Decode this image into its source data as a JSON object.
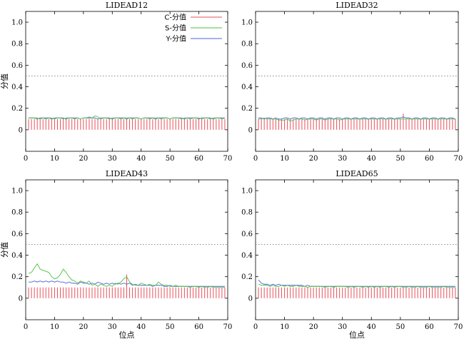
{
  "chart_data": [
    {
      "type": "line",
      "title": "LIDEAD12",
      "xlabel": "",
      "ylabel": "分值",
      "xlim": [
        0,
        70
      ],
      "ylim": [
        -0.2,
        1.1
      ],
      "xticks": [
        "0",
        "10",
        "20",
        "30",
        "40",
        "50",
        "60",
        "70"
      ],
      "yticks": [
        "0",
        "0.2",
        "0.4",
        "0.6",
        "0.8",
        "1.0"
      ],
      "reference_line": 0.5,
      "legend_position": "top-right",
      "legend": [
        {
          "name": "C-分值",
          "color": "#e8505a"
        },
        {
          "name": "S-分值",
          "color": "#4fc23c"
        },
        {
          "name": "Y-分值",
          "color": "#4b63d8"
        }
      ],
      "c_values": [
        0.1,
        0.1,
        0.1,
        0.1,
        0.1,
        0.1,
        0.1,
        0.1,
        0.1,
        0.1,
        0.1,
        0.1,
        0.1,
        0.1,
        0.1,
        0.1,
        0.1,
        0.1,
        0.1,
        0.1,
        0.1,
        0.1,
        0.1,
        0.1,
        0.1,
        0.1,
        0.1,
        0.1,
        0.1,
        0.1,
        0.1,
        0.1,
        0.1,
        0.1,
        0.1,
        0.1,
        0.1,
        0.1,
        0.1,
        0.1,
        0.1,
        0.1,
        0.1,
        0.1,
        0.1,
        0.1,
        0.1,
        0.1,
        0.1,
        0.1,
        0.1,
        0.1,
        0.1,
        0.1,
        0.1,
        0.1,
        0.1,
        0.1,
        0.1,
        0.1,
        0.1,
        0.1,
        0.1,
        0.1,
        0.1,
        0.1,
        0.1,
        0.1,
        0.1
      ],
      "s_values": [
        0.11,
        0.11,
        0.11,
        0.11,
        0.1,
        0.11,
        0.1,
        0.11,
        0.11,
        0.1,
        0.11,
        0.11,
        0.1,
        0.11,
        0.11,
        0.11,
        0.1,
        0.11,
        0.1,
        0.11,
        0.11,
        0.12,
        0.11,
        0.13,
        0.12,
        0.1,
        0.11,
        0.11,
        0.1,
        0.11,
        0.11,
        0.11,
        0.1,
        0.11,
        0.11,
        0.11,
        0.1,
        0.11,
        0.11,
        0.1,
        0.11,
        0.11,
        0.1,
        0.11,
        0.11,
        0.11,
        0.1,
        0.11,
        0.11,
        0.1,
        0.11,
        0.11,
        0.11,
        0.1,
        0.11,
        0.11,
        0.1,
        0.11,
        0.11,
        0.11,
        0.1,
        0.11,
        0.11,
        0.1,
        0.11,
        0.11,
        0.11,
        0.1,
        0.11
      ],
      "y_values": [
        0.11,
        0.11,
        0.11,
        0.1,
        0.11,
        0.11,
        0.11,
        0.11,
        0.1,
        0.11,
        0.11,
        0.11,
        0.11,
        0.1,
        0.11,
        0.11,
        0.11,
        0.11,
        0.1,
        0.11,
        0.11,
        0.11,
        0.11,
        0.11,
        0.1,
        0.11,
        0.11,
        0.11,
        0.11,
        0.1,
        0.11,
        0.11,
        0.11,
        0.11,
        0.1,
        0.11,
        0.11,
        0.11,
        0.11,
        0.1,
        0.11,
        0.11,
        0.11,
        0.11,
        0.1,
        0.11,
        0.11,
        0.11,
        0.11,
        0.1,
        0.11,
        0.11,
        0.11,
        0.11,
        0.1,
        0.11,
        0.11,
        0.11,
        0.11,
        0.1,
        0.11,
        0.11,
        0.11,
        0.11,
        0.1,
        0.11,
        0.11,
        0.11,
        0.11
      ]
    },
    {
      "type": "line",
      "title": "LIDEAD32",
      "xlabel": "",
      "ylabel": "",
      "xlim": [
        0,
        70
      ],
      "ylim": [
        -0.2,
        1.1
      ],
      "xticks": [
        "0",
        "10",
        "20",
        "30",
        "40",
        "50",
        "60",
        "70"
      ],
      "yticks": [
        "0",
        "0.2",
        "0.4",
        "0.6",
        "0.8",
        "1.0"
      ],
      "reference_line": 0.5,
      "c_values": [
        0.1,
        0.1,
        0.1,
        0.1,
        0.1,
        0.1,
        0.1,
        0.1,
        0.1,
        0.1,
        0.1,
        0.1,
        0.1,
        0.1,
        0.1,
        0.1,
        0.1,
        0.1,
        0.1,
        0.1,
        0.1,
        0.1,
        0.1,
        0.1,
        0.1,
        0.1,
        0.1,
        0.1,
        0.1,
        0.1,
        0.1,
        0.1,
        0.1,
        0.1,
        0.1,
        0.1,
        0.1,
        0.1,
        0.1,
        0.1,
        0.1,
        0.1,
        0.1,
        0.1,
        0.1,
        0.1,
        0.1,
        0.1,
        0.1,
        0.1,
        0.15,
        0.1,
        0.1,
        0.1,
        0.1,
        0.1,
        0.1,
        0.1,
        0.1,
        0.1,
        0.1,
        0.1,
        0.1,
        0.1,
        0.1,
        0.1,
        0.1,
        0.1,
        0.1
      ],
      "s_values": [
        0.1,
        0.1,
        0.11,
        0.1,
        0.1,
        0.1,
        0.1,
        0.09,
        0.09,
        0.09,
        0.1,
        0.08,
        0.09,
        0.1,
        0.1,
        0.1,
        0.09,
        0.1,
        0.1,
        0.1,
        0.09,
        0.1,
        0.1,
        0.09,
        0.1,
        0.1,
        0.1,
        0.1,
        0.09,
        0.1,
        0.1,
        0.1,
        0.1,
        0.1,
        0.1,
        0.1,
        0.1,
        0.1,
        0.1,
        0.1,
        0.1,
        0.1,
        0.1,
        0.1,
        0.1,
        0.1,
        0.1,
        0.1,
        0.1,
        0.1,
        0.1,
        0.1,
        0.1,
        0.1,
        0.1,
        0.1,
        0.1,
        0.1,
        0.1,
        0.1,
        0.1,
        0.1,
        0.1,
        0.1,
        0.1,
        0.1,
        0.1,
        0.1,
        0.1
      ],
      "y_values": [
        0.11,
        0.11,
        0.1,
        0.11,
        0.11,
        0.1,
        0.11,
        0.1,
        0.1,
        0.11,
        0.11,
        0.1,
        0.11,
        0.11,
        0.1,
        0.11,
        0.11,
        0.1,
        0.11,
        0.11,
        0.1,
        0.11,
        0.11,
        0.1,
        0.11,
        0.11,
        0.1,
        0.11,
        0.11,
        0.1,
        0.11,
        0.11,
        0.1,
        0.11,
        0.11,
        0.1,
        0.11,
        0.11,
        0.1,
        0.11,
        0.11,
        0.1,
        0.11,
        0.11,
        0.1,
        0.11,
        0.11,
        0.1,
        0.11,
        0.11,
        0.12,
        0.11,
        0.11,
        0.1,
        0.11,
        0.11,
        0.1,
        0.11,
        0.11,
        0.1,
        0.11,
        0.11,
        0.1,
        0.11,
        0.11,
        0.1,
        0.11,
        0.11,
        0.1
      ]
    },
    {
      "type": "line",
      "title": "LIDEAD43",
      "xlabel": "位点",
      "ylabel": "分值",
      "xlim": [
        0,
        70
      ],
      "ylim": [
        -0.2,
        1.1
      ],
      "xticks": [
        "0",
        "10",
        "20",
        "30",
        "40",
        "50",
        "60",
        "70"
      ],
      "yticks": [
        "0",
        "0.2",
        "0.4",
        "0.6",
        "0.8",
        "1.0"
      ],
      "reference_line": 0.5,
      "c_values": [
        0.1,
        0.1,
        0.1,
        0.1,
        0.1,
        0.1,
        0.1,
        0.1,
        0.1,
        0.1,
        0.1,
        0.1,
        0.1,
        0.1,
        0.1,
        0.1,
        0.1,
        0.1,
        0.1,
        0.1,
        0.1,
        0.1,
        0.1,
        0.1,
        0.1,
        0.1,
        0.1,
        0.1,
        0.1,
        0.1,
        0.1,
        0.1,
        0.1,
        0.1,
        0.22,
        0.1,
        0.1,
        0.1,
        0.1,
        0.1,
        0.1,
        0.1,
        0.1,
        0.1,
        0.1,
        0.1,
        0.1,
        0.1,
        0.1,
        0.1,
        0.1,
        0.1,
        0.1,
        0.1,
        0.1,
        0.1,
        0.1,
        0.1,
        0.1,
        0.1,
        0.1,
        0.1,
        0.1,
        0.1,
        0.1,
        0.1,
        0.1,
        0.1,
        0.1
      ],
      "s_values": [
        0.23,
        0.24,
        0.28,
        0.32,
        0.27,
        0.26,
        0.25,
        0.24,
        0.2,
        0.18,
        0.19,
        0.22,
        0.27,
        0.24,
        0.2,
        0.17,
        0.16,
        0.14,
        0.16,
        0.15,
        0.14,
        0.16,
        0.12,
        0.13,
        0.11,
        0.13,
        0.12,
        0.11,
        0.12,
        0.11,
        0.14,
        0.13,
        0.15,
        0.18,
        0.2,
        0.15,
        0.13,
        0.12,
        0.12,
        0.14,
        0.13,
        0.12,
        0.13,
        0.12,
        0.12,
        0.15,
        0.13,
        0.12,
        0.12,
        0.11,
        0.11,
        0.12,
        0.11,
        0.11,
        0.11,
        0.11,
        0.1,
        0.11,
        0.11,
        0.1,
        0.11,
        0.1,
        0.1,
        0.11,
        0.1,
        0.1,
        0.1,
        0.1,
        0.1
      ],
      "y_values": [
        0.15,
        0.15,
        0.16,
        0.15,
        0.16,
        0.15,
        0.16,
        0.15,
        0.16,
        0.15,
        0.16,
        0.15,
        0.15,
        0.14,
        0.15,
        0.14,
        0.14,
        0.13,
        0.15,
        0.14,
        0.14,
        0.13,
        0.14,
        0.13,
        0.15,
        0.14,
        0.13,
        0.14,
        0.13,
        0.14,
        0.13,
        0.14,
        0.13,
        0.14,
        0.13,
        0.14,
        0.12,
        0.13,
        0.12,
        0.12,
        0.12,
        0.12,
        0.12,
        0.11,
        0.12,
        0.12,
        0.12,
        0.11,
        0.11,
        0.12,
        0.11,
        0.11,
        0.11,
        0.11,
        0.11,
        0.11,
        0.11,
        0.11,
        0.11,
        0.11,
        0.11,
        0.11,
        0.11,
        0.11,
        0.11,
        0.11,
        0.11,
        0.11,
        0.11
      ]
    },
    {
      "type": "line",
      "title": "LIDEAD65",
      "xlabel": "位点",
      "ylabel": "",
      "xlim": [
        0,
        70
      ],
      "ylim": [
        -0.2,
        1.1
      ],
      "xticks": [
        "0",
        "10",
        "20",
        "30",
        "40",
        "50",
        "60",
        "70"
      ],
      "yticks": [
        "0",
        "0.2",
        "0.4",
        "0.6",
        "0.8",
        "1.0"
      ],
      "reference_line": 0.5,
      "c_values": [
        0.1,
        0.1,
        0.1,
        0.1,
        0.1,
        0.1,
        0.1,
        0.1,
        0.1,
        0.1,
        0.1,
        0.1,
        0.1,
        0.1,
        0.1,
        0.1,
        0.1,
        0.1,
        0.1,
        0.1,
        0.1,
        0.1,
        0.1,
        0.1,
        0.1,
        0.1,
        0.1,
        0.1,
        0.1,
        0.1,
        0.1,
        0.1,
        0.1,
        0.1,
        0.1,
        0.1,
        0.1,
        0.1,
        0.1,
        0.1,
        0.1,
        0.1,
        0.1,
        0.1,
        0.1,
        0.1,
        0.1,
        0.1,
        0.1,
        0.1,
        0.1,
        0.1,
        0.1,
        0.1,
        0.1,
        0.1,
        0.1,
        0.1,
        0.1,
        0.1,
        0.1,
        0.1,
        0.1,
        0.1,
        0.1,
        0.1,
        0.1,
        0.1,
        0.1
      ],
      "s_values": [
        0.13,
        0.12,
        0.12,
        0.12,
        0.11,
        0.12,
        0.11,
        0.11,
        0.12,
        0.11,
        0.12,
        0.11,
        0.11,
        0.12,
        0.11,
        0.11,
        0.11,
        0.1,
        0.11,
        0.11,
        0.11,
        0.11,
        0.11,
        0.1,
        0.11,
        0.11,
        0.1,
        0.11,
        0.11,
        0.11,
        0.11,
        0.1,
        0.11,
        0.1,
        0.11,
        0.11,
        0.1,
        0.11,
        0.1,
        0.11,
        0.1,
        0.11,
        0.1,
        0.11,
        0.11,
        0.1,
        0.11,
        0.1,
        0.11,
        0.11,
        0.1,
        0.1,
        0.11,
        0.1,
        0.1,
        0.11,
        0.1,
        0.1,
        0.1,
        0.11,
        0.1,
        0.1,
        0.1,
        0.1,
        0.11,
        0.1,
        0.1,
        0.1,
        0.1
      ],
      "y_values": [
        0.17,
        0.14,
        0.13,
        0.13,
        0.12,
        0.13,
        0.12,
        0.13,
        0.12,
        0.12,
        0.12,
        0.12,
        0.12,
        0.12,
        0.12,
        0.12,
        0.11,
        0.12,
        0.11,
        0.11,
        0.11,
        0.11,
        0.11,
        0.11,
        0.11,
        0.11,
        0.11,
        0.11,
        0.11,
        0.11,
        0.11,
        0.11,
        0.11,
        0.11,
        0.11,
        0.11,
        0.11,
        0.11,
        0.11,
        0.11,
        0.11,
        0.11,
        0.11,
        0.11,
        0.11,
        0.11,
        0.11,
        0.11,
        0.11,
        0.11,
        0.11,
        0.11,
        0.11,
        0.11,
        0.11,
        0.11,
        0.11,
        0.11,
        0.11,
        0.11,
        0.11,
        0.11,
        0.11,
        0.11,
        0.11,
        0.11,
        0.11,
        0.11,
        0.11
      ]
    }
  ]
}
